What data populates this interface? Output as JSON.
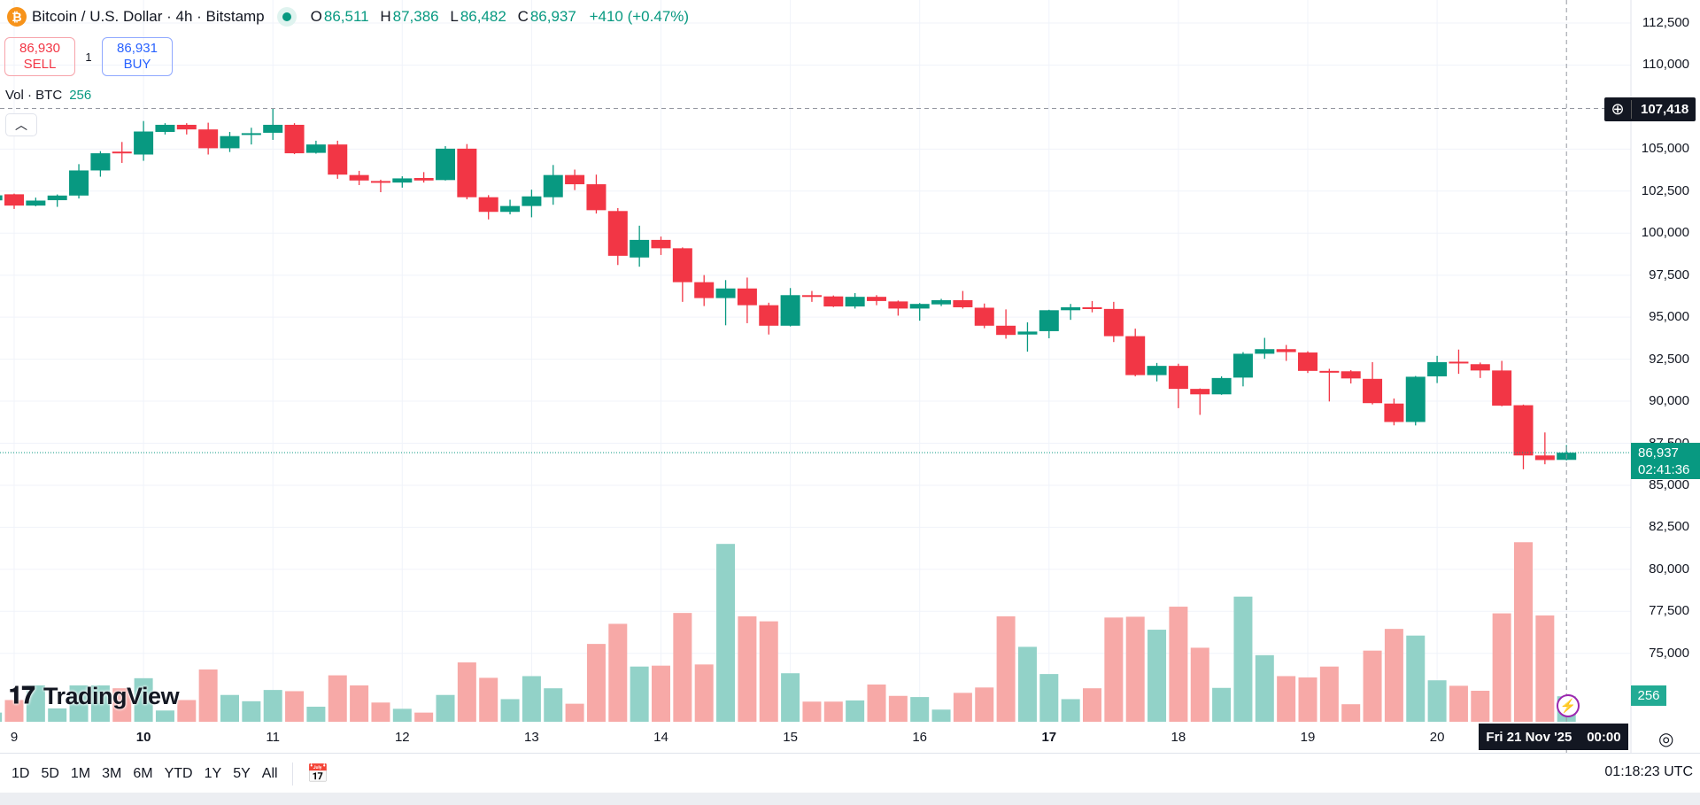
{
  "header": {
    "symbol_title": "Bitcoin / U.S. Dollar · 4h · Bitstamp",
    "coin_icon": "bitcoin-icon",
    "ohlc": {
      "o_label": "O",
      "o": "86,511",
      "h_label": "H",
      "h": "87,386",
      "l_label": "L",
      "l": "86,482",
      "c_label": "C",
      "c": "86,937",
      "change": "+410 (+0.47%)"
    }
  },
  "trade": {
    "sell_price": "86,930",
    "sell_label": "SELL",
    "qty": "1",
    "buy_price": "86,931",
    "buy_label": "BUY"
  },
  "volume_legend": {
    "label": "Vol · BTC",
    "value": "256"
  },
  "price_axis": {
    "ticks": [
      "112,500",
      "110,000",
      "105,000",
      "102,500",
      "100,000",
      "97,500",
      "95,000",
      "92,500",
      "90,000",
      "87,500",
      "85,000",
      "82,500",
      "80,000",
      "77,500",
      "75,000"
    ],
    "crosshair_price": "107,418",
    "current_price": "86,937",
    "countdown": "02:41:36",
    "volume_value": "256"
  },
  "time_axis": {
    "ticks": [
      {
        "label": "9",
        "bold": false
      },
      {
        "label": "10",
        "bold": true
      },
      {
        "label": "11",
        "bold": false
      },
      {
        "label": "12",
        "bold": false
      },
      {
        "label": "13",
        "bold": false
      },
      {
        "label": "14",
        "bold": false
      },
      {
        "label": "15",
        "bold": false
      },
      {
        "label": "16",
        "bold": false
      },
      {
        "label": "17",
        "bold": true
      },
      {
        "label": "18",
        "bold": false
      },
      {
        "label": "19",
        "bold": false
      },
      {
        "label": "20",
        "bold": false
      }
    ],
    "crosshair_date": "Fri 21 Nov '25",
    "crosshair_time": "00:00"
  },
  "toolbar": {
    "ranges": [
      "1D",
      "5D",
      "1M",
      "3M",
      "6M",
      "YTD",
      "1Y",
      "5Y",
      "All"
    ],
    "clock": "01:18:23 UTC"
  },
  "logo": "TradingView",
  "colors": {
    "up": "#089981",
    "down": "#F23645",
    "vol_up": "#92D2C8",
    "vol_down": "#F7A9A7",
    "text": "#131722"
  },
  "chart_data": {
    "type": "candlestick",
    "interval": "4h",
    "ylim": [
      72000,
      113500
    ],
    "grid": true,
    "fields": [
      "open",
      "high",
      "low",
      "close",
      "volume"
    ],
    "candles": [
      [
        101950,
        102400,
        101800,
        102250,
        92
      ],
      [
        102311,
        102350,
        101440,
        101639,
        218
      ],
      [
        101639,
        102112,
        101600,
        101937,
        365
      ],
      [
        101960,
        102300,
        101564,
        102236,
        134
      ],
      [
        102236,
        104104,
        102062,
        103730,
        365
      ],
      [
        103730,
        104876,
        103357,
        104751,
        365
      ],
      [
        104850,
        105423,
        104178,
        104750,
        336
      ],
      [
        104676,
        106668,
        104303,
        106046,
        437
      ],
      [
        106021,
        106540,
        105870,
        106444,
        113
      ],
      [
        106444,
        106540,
        105870,
        106170,
        218
      ],
      [
        106170,
        106569,
        104676,
        105050,
        525
      ],
      [
        105050,
        106021,
        104826,
        105772,
        269
      ],
      [
        105847,
        106270,
        105274,
        105946,
        206
      ],
      [
        105971,
        107418,
        105548,
        106444,
        319
      ],
      [
        106444,
        106540,
        104700,
        104751,
        307
      ],
      [
        104776,
        105498,
        104730,
        105274,
        151
      ],
      [
        105274,
        105498,
        103232,
        103481,
        466
      ],
      [
        103456,
        103705,
        102859,
        103132,
        365
      ],
      [
        103100,
        103180,
        102435,
        103030,
        193
      ],
      [
        103008,
        103380,
        102709,
        103257,
        130
      ],
      [
        103280,
        103630,
        103008,
        103132,
        92
      ],
      [
        103157,
        105174,
        103130,
        105025,
        269
      ],
      [
        105025,
        105299,
        102012,
        102136,
        596
      ],
      [
        102136,
        102260,
        100817,
        101265,
        441
      ],
      [
        101265,
        101987,
        101116,
        101614,
        227
      ],
      [
        101614,
        102585,
        100941,
        102186,
        458
      ],
      [
        102136,
        104054,
        101688,
        103456,
        336
      ],
      [
        103456,
        103780,
        102560,
        102908,
        181
      ],
      [
        102908,
        103481,
        101165,
        101365,
        781
      ],
      [
        101315,
        101489,
        98103,
        98651,
        983
      ],
      [
        98551,
        100443,
        98003,
        99597,
        554
      ],
      [
        99597,
        99796,
        98700,
        99099,
        563
      ],
      [
        99099,
        99150,
        95911,
        97082,
        1092
      ],
      [
        97082,
        97505,
        95662,
        96136,
        575
      ],
      [
        96136,
        97206,
        94517,
        96708,
        1785
      ],
      [
        96708,
        97356,
        94642,
        95712,
        1058
      ],
      [
        95712,
        95860,
        93969,
        94492,
        1008
      ],
      [
        94492,
        96733,
        94450,
        96310,
        487
      ],
      [
        96310,
        96559,
        95911,
        96240,
        202
      ],
      [
        96235,
        96290,
        95600,
        95637,
        202
      ],
      [
        95637,
        96434,
        95513,
        96210,
        214
      ],
      [
        96210,
        96310,
        95712,
        95961,
        374
      ],
      [
        95936,
        95990,
        95090,
        95513,
        260
      ],
      [
        95513,
        95840,
        94791,
        95787,
        248
      ],
      [
        95762,
        96090,
        95660,
        96011,
        122
      ],
      [
        96011,
        96559,
        95510,
        95588,
        290
      ],
      [
        95563,
        95812,
        94343,
        94492,
        344
      ],
      [
        94492,
        95463,
        93720,
        93944,
        1058
      ],
      [
        93969,
        94691,
        92948,
        94144,
        752
      ],
      [
        94169,
        95440,
        93745,
        95413,
        479
      ],
      [
        95413,
        95787,
        94841,
        95588,
        227
      ],
      [
        95588,
        95961,
        95289,
        95490,
        336
      ],
      [
        95490,
        95912,
        93521,
        93870,
        1046
      ],
      [
        93870,
        94318,
        91480,
        91554,
        1054
      ],
      [
        91554,
        92276,
        91180,
        92102,
        924
      ],
      [
        92102,
        92230,
        89587,
        90733,
        1155
      ],
      [
        90733,
        90760,
        89189,
        90409,
        743
      ],
      [
        90409,
        91480,
        90380,
        91380,
        340
      ],
      [
        91405,
        92920,
        90882,
        92824,
        1256
      ],
      [
        92824,
        93770,
        92525,
        93098,
        668
      ],
      [
        93098,
        93347,
        92400,
        92923,
        458
      ],
      [
        92898,
        92970,
        91679,
        91803,
        445
      ],
      [
        91803,
        91928,
        89985,
        91760,
        554
      ],
      [
        91780,
        91850,
        91056,
        91355,
        176
      ],
      [
        91330,
        92326,
        89810,
        89886,
        714
      ],
      [
        89861,
        90160,
        88566,
        88765,
        932
      ],
      [
        88765,
        91500,
        88560,
        91455,
        865
      ],
      [
        91480,
        92700,
        91081,
        92326,
        416
      ],
      [
        92351,
        93073,
        91629,
        92250,
        361
      ],
      [
        92202,
        92300,
        91380,
        91828,
        311
      ],
      [
        91828,
        92400,
        89700,
        89737,
        1088
      ],
      [
        89762,
        89800,
        85952,
        86773,
        1802
      ],
      [
        86773,
        88143,
        86251,
        86499,
        1067
      ],
      [
        86511,
        87386,
        86482,
        86937,
        256
      ]
    ]
  }
}
